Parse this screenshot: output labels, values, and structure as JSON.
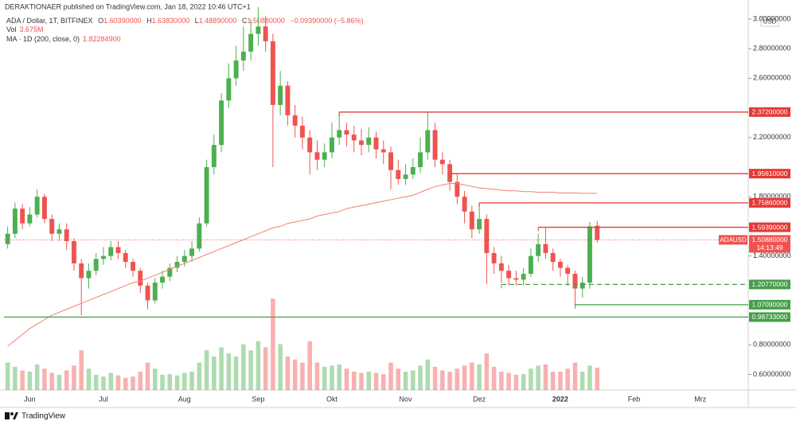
{
  "header": {
    "publisher": "DERAKTIONAER published on TradingView.com, Jan 18, 2022 10:46 UTC+1"
  },
  "legend": {
    "symbol": "ADA / Dollar, 1T, BITFINEX",
    "ohlc": [
      {
        "label": "O",
        "value": "1.60390000"
      },
      {
        "label": "H",
        "value": "1.63830000"
      },
      {
        "label": "L",
        "value": "1.48890000"
      },
      {
        "label": "C",
        "value": "1.50880000"
      }
    ],
    "change": "−0.09390000 (−5.86%)",
    "volume": {
      "label": "Vol",
      "value": "3.675M"
    },
    "ma": {
      "label": "MA · 1D (200, close, 0)",
      "value": "1.82284900"
    }
  },
  "footer": {
    "brand": "TradingView"
  },
  "chart_data": {
    "type": "candlestick",
    "y_unit": "USD",
    "up_color": "#4caf50",
    "down_color": "#ef5350",
    "ma_color": "#f08070",
    "grid": false,
    "categories": [
      null,
      null,
      null,
      "Jun",
      null,
      null,
      null,
      null,
      null,
      null,
      null,
      null,
      null,
      "Jul",
      null,
      null,
      null,
      null,
      null,
      null,
      null,
      null,
      null,
      null,
      "Aug",
      null,
      null,
      null,
      null,
      null,
      null,
      null,
      null,
      null,
      "Sep",
      null,
      null,
      null,
      null,
      null,
      null,
      null,
      null,
      null,
      "Okt",
      null,
      null,
      null,
      null,
      null,
      null,
      null,
      null,
      null,
      "Nov",
      null,
      null,
      null,
      null,
      null,
      null,
      null,
      null,
      null,
      "Dez",
      null,
      null,
      null,
      null,
      null,
      null,
      null,
      null,
      null,
      null,
      "2022",
      null,
      null,
      null,
      null,
      null,
      null,
      null,
      null,
      null,
      "Feb",
      null,
      null,
      null,
      null,
      null,
      null,
      null,
      null,
      "Mrz",
      null,
      null,
      null,
      null,
      null,
      null
    ],
    "open": [
      1.48,
      1.55,
      1.72,
      1.62,
      1.68,
      1.8,
      1.65,
      1.55,
      1.58,
      1.5,
      1.35,
      1.25,
      1.3,
      1.38,
      1.4,
      1.46,
      1.42,
      1.36,
      1.3,
      1.2,
      1.1,
      1.22,
      1.26,
      1.32,
      1.36,
      1.4,
      1.45,
      1.62,
      2.0,
      2.15,
      2.45,
      2.6,
      2.72,
      2.78,
      2.9,
      2.95,
      2.85,
      2.42,
      2.55,
      2.35,
      2.28,
      2.2,
      2.1,
      2.05,
      2.1,
      2.2,
      2.25,
      2.22,
      2.18,
      2.15,
      2.2,
      2.12,
      2.1,
      1.98,
      1.92,
      1.95,
      2.0,
      2.1,
      2.25,
      2.05,
      2.02,
      1.9,
      1.8,
      1.7,
      1.58,
      1.65,
      1.42,
      1.35,
      1.3,
      1.25,
      1.24,
      1.28,
      1.4,
      1.48,
      1.42,
      1.36,
      1.32,
      1.28,
      1.18,
      1.22,
      1.6039,
      null,
      null,
      null,
      null,
      null,
      null,
      null,
      null,
      null,
      null,
      null,
      null,
      null,
      null,
      null,
      null,
      null,
      null,
      null,
      null
    ],
    "high": [
      1.6,
      1.76,
      1.75,
      1.73,
      1.85,
      1.82,
      1.68,
      1.62,
      1.62,
      1.52,
      1.38,
      1.35,
      1.42,
      1.46,
      1.5,
      1.5,
      1.44,
      1.38,
      1.32,
      1.22,
      1.25,
      1.3,
      1.35,
      1.4,
      1.44,
      1.5,
      1.66,
      2.05,
      2.22,
      2.5,
      2.7,
      2.82,
      2.95,
      3.0,
      3.08,
      3.02,
      2.9,
      2.65,
      2.58,
      2.42,
      2.34,
      2.25,
      2.18,
      2.16,
      2.3,
      2.37,
      2.3,
      2.28,
      2.26,
      2.27,
      2.24,
      2.18,
      2.14,
      2.05,
      2.02,
      2.06,
      2.2,
      2.37,
      2.3,
      2.1,
      2.05,
      1.96,
      1.84,
      1.74,
      1.76,
      1.68,
      1.46,
      1.4,
      1.34,
      1.3,
      1.32,
      1.45,
      1.55,
      1.59,
      1.45,
      1.38,
      1.34,
      1.3,
      1.26,
      1.63,
      1.6383,
      null,
      null,
      null,
      null,
      null,
      null,
      null,
      null,
      null,
      null,
      null,
      null,
      null,
      null,
      null,
      null,
      null,
      null,
      null,
      null
    ],
    "low": [
      1.45,
      1.52,
      1.58,
      1.6,
      1.66,
      1.62,
      1.5,
      1.5,
      1.44,
      1.3,
      1.0,
      1.18,
      1.27,
      1.34,
      1.37,
      1.38,
      1.32,
      1.26,
      1.15,
      1.04,
      1.08,
      1.18,
      1.23,
      1.29,
      1.33,
      1.36,
      1.43,
      1.6,
      1.95,
      2.1,
      2.4,
      2.55,
      2.65,
      2.72,
      2.82,
      2.78,
      2.0,
      2.35,
      2.28,
      2.2,
      2.12,
      1.95,
      1.98,
      2.0,
      2.06,
      2.15,
      2.14,
      2.1,
      2.08,
      2.1,
      2.06,
      2.02,
      1.85,
      1.88,
      1.88,
      1.92,
      1.96,
      2.05,
      2.0,
      1.95,
      1.84,
      1.75,
      1.62,
      1.52,
      1.55,
      1.21,
      1.28,
      1.22,
      1.2,
      1.2,
      1.2,
      1.26,
      1.36,
      1.38,
      1.3,
      1.26,
      1.2,
      1.07,
      1.12,
      1.18,
      1.4889,
      null,
      null,
      null,
      null,
      null,
      null,
      null,
      null,
      null,
      null,
      null,
      null,
      null,
      null,
      null,
      null,
      null,
      null,
      null,
      null
    ],
    "close": [
      1.55,
      1.72,
      1.62,
      1.68,
      1.8,
      1.65,
      1.55,
      1.58,
      1.5,
      1.35,
      1.25,
      1.3,
      1.38,
      1.4,
      1.46,
      1.42,
      1.36,
      1.3,
      1.2,
      1.1,
      1.22,
      1.26,
      1.32,
      1.36,
      1.4,
      1.45,
      1.62,
      2.0,
      2.15,
      2.45,
      2.6,
      2.72,
      2.78,
      2.9,
      2.95,
      2.85,
      2.42,
      2.55,
      2.35,
      2.28,
      2.2,
      2.1,
      2.05,
      2.1,
      2.2,
      2.25,
      2.22,
      2.18,
      2.15,
      2.2,
      2.12,
      2.1,
      1.98,
      1.92,
      1.95,
      2.0,
      2.1,
      2.25,
      2.05,
      2.02,
      1.9,
      1.8,
      1.7,
      1.58,
      1.65,
      1.42,
      1.35,
      1.3,
      1.25,
      1.24,
      1.28,
      1.4,
      1.48,
      1.42,
      1.36,
      1.32,
      1.28,
      1.18,
      1.22,
      1.6,
      1.5088,
      null,
      null,
      null,
      null,
      null,
      null,
      null,
      null,
      null,
      null,
      null,
      null,
      null,
      null,
      null,
      null,
      null,
      null,
      null,
      null
    ],
    "volume": [
      4.5,
      3.8,
      3.2,
      3.0,
      4.2,
      3.5,
      2.8,
      2.5,
      3.2,
      4.0,
      6.5,
      3.5,
      2.5,
      2.2,
      2.8,
      2.4,
      2.0,
      2.2,
      3.0,
      4.5,
      3.5,
      2.5,
      2.6,
      2.4,
      2.8,
      3.0,
      4.5,
      6.5,
      5.5,
      7.0,
      6.0,
      5.5,
      7.5,
      6.5,
      8.0,
      7.0,
      15.0,
      7.5,
      5.5,
      5.0,
      4.5,
      8.0,
      4.5,
      3.8,
      4.0,
      4.2,
      3.5,
      3.0,
      2.8,
      3.0,
      2.8,
      2.6,
      4.5,
      3.5,
      3.0,
      3.2,
      4.0,
      5.0,
      3.8,
      3.2,
      3.0,
      3.5,
      4.0,
      4.5,
      4.2,
      6.0,
      3.8,
      3.0,
      2.8,
      2.5,
      2.6,
      3.5,
      4.0,
      4.2,
      3.0,
      3.0,
      3.5,
      4.5,
      3.0,
      4.0,
      3.675,
      null,
      null,
      null,
      null,
      null,
      null,
      null,
      null,
      null,
      null,
      null,
      null,
      null,
      null,
      null,
      null,
      null,
      null,
      null,
      null
    ],
    "ma": [
      0.79,
      0.83,
      0.87,
      0.91,
      0.94,
      0.97,
      1.0,
      1.02,
      1.04,
      1.06,
      1.08,
      1.1,
      1.12,
      1.14,
      1.16,
      1.18,
      1.2,
      1.22,
      1.23,
      1.25,
      1.27,
      1.29,
      1.31,
      1.33,
      1.35,
      1.37,
      1.39,
      1.41,
      1.43,
      1.45,
      1.47,
      1.49,
      1.51,
      1.53,
      1.55,
      1.57,
      1.59,
      1.6,
      1.62,
      1.63,
      1.64,
      1.65,
      1.67,
      1.68,
      1.69,
      1.7,
      1.72,
      1.73,
      1.74,
      1.75,
      1.76,
      1.77,
      1.78,
      1.79,
      1.8,
      1.81,
      1.83,
      1.85,
      1.87,
      1.88,
      1.89,
      1.89,
      1.88,
      1.87,
      1.86,
      1.855,
      1.85,
      1.845,
      1.84,
      1.84,
      1.835,
      1.835,
      1.83,
      1.83,
      1.83,
      1.825,
      1.825,
      1.825,
      1.823,
      1.823,
      1.822849,
      null,
      null,
      null,
      null,
      null,
      null,
      null,
      null,
      null,
      null,
      null,
      null,
      null,
      null,
      null,
      null,
      null,
      null,
      null,
      null
    ],
    "ylim": [
      0.495,
      3.032
    ],
    "yticks": [
      {
        "value": 3.0,
        "label": "3.00000000"
      },
      {
        "value": 2.8,
        "label": "2.80000000"
      },
      {
        "value": 2.6,
        "label": "2.60000000"
      },
      {
        "value": 2.2,
        "label": "2.20000000"
      },
      {
        "value": 1.8,
        "label": "1.80000000"
      },
      {
        "value": 1.4,
        "label": "1.40000000"
      },
      {
        "value": 0.8,
        "label": "0.80000000"
      },
      {
        "value": 0.6,
        "label": "0.60000000"
      }
    ],
    "levels": [
      {
        "value": 2.372,
        "label": "2.37200000",
        "color": "#e53935",
        "start": 45,
        "style": "solid"
      },
      {
        "value": 1.9561,
        "label": "1.95610000",
        "color": "#e53935",
        "start": 60,
        "style": "solid"
      },
      {
        "value": 1.7586,
        "label": "1.75860000",
        "color": "#e53935",
        "start": 64,
        "style": "solid"
      },
      {
        "value": 1.5939,
        "label": "1.59390000",
        "color": "#e53935",
        "start": 72,
        "style": "solid"
      },
      {
        "value": 1.2077,
        "label": "1.20770000",
        "color": "#43a047",
        "start": 67,
        "style": "dashed"
      },
      {
        "value": 1.0709,
        "label": "1.07090000",
        "color": "#43a047",
        "start": 77,
        "style": "solid"
      },
      {
        "value": 0.98733,
        "label": "0.98733000",
        "color": "#43a047",
        "start": 0,
        "style": "solid"
      }
    ],
    "last_price": {
      "value": 1.5088,
      "label": "1.50880000",
      "symbol": "ADAUSD",
      "countdown": "14:13:49",
      "color": "#ef5350"
    }
  }
}
